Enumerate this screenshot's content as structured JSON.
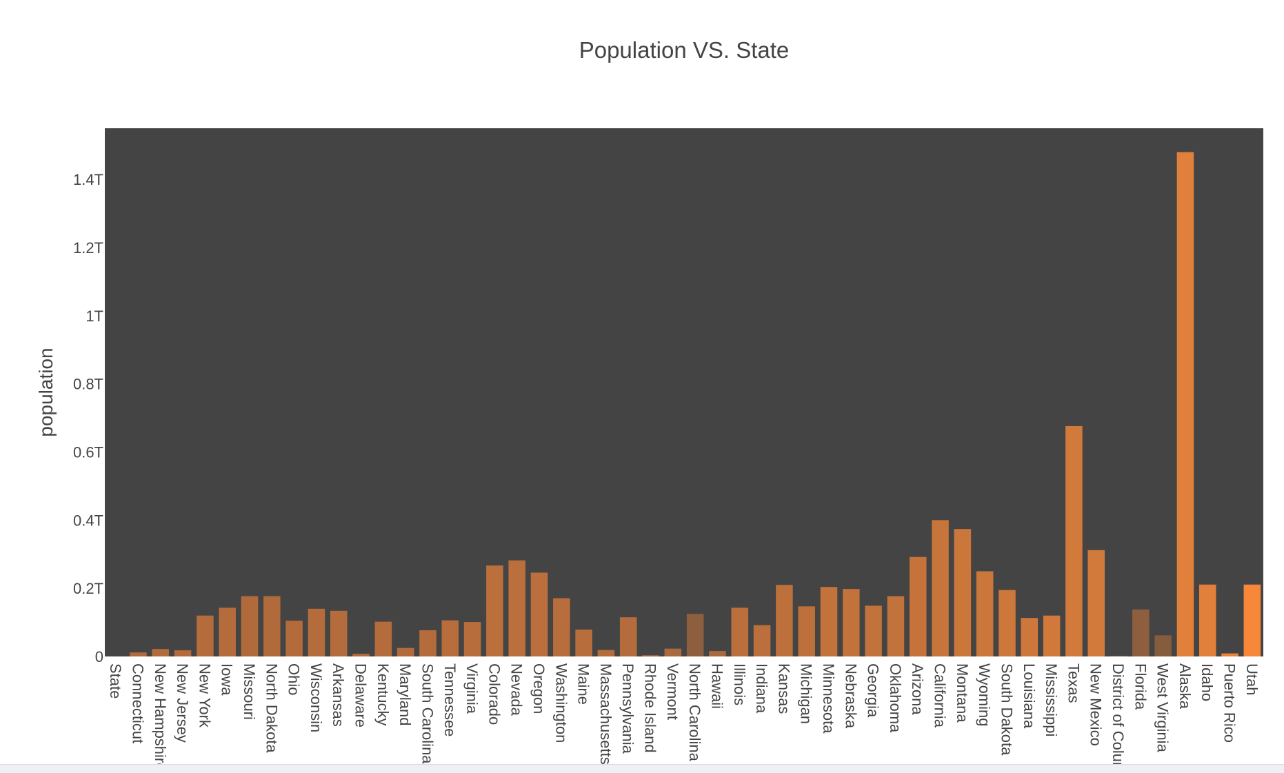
{
  "chart_data": {
    "type": "bar",
    "title": "Population VS. State",
    "xlabel": "",
    "ylabel": "population",
    "ylim": [
      0,
      1.55
    ],
    "ytick_values": [
      0,
      0.2,
      0.4,
      0.6,
      0.8,
      1,
      1.2,
      1.4
    ],
    "ytick_labels": [
      "0",
      "0.2T",
      "0.4T",
      "0.6T",
      "0.8T",
      "1T",
      "1.2T",
      "1.4T"
    ],
    "grid": false,
    "legend": "none",
    "plot_background": "#444444",
    "color_low": "#7c5a3f",
    "color_high": "#f7883a",
    "categories": [
      "State",
      "Connecticut",
      "New Hampshire",
      "New Jersey",
      "New York",
      "Iowa",
      "Missouri",
      "North Dakota",
      "Ohio",
      "Wisconsin",
      "Arkansas",
      "Delaware",
      "Kentucky",
      "Maryland",
      "South Carolina",
      "Tennessee",
      "Virginia",
      "Colorado",
      "Nevada",
      "Oregon",
      "Washington",
      "Maine",
      "Massachusetts",
      "Pennsylvania",
      "Rhode Island",
      "Vermont",
      "North Carolina",
      "Hawaii",
      "Illinois",
      "Indiana",
      "Kansas",
      "Michigan",
      "Minnesota",
      "Nebraska",
      "Georgia",
      "Oklahoma",
      "Arizona",
      "California",
      "Montana",
      "Wyoming",
      "South Dakota",
      "Louisiana",
      "Mississippi",
      "Texas",
      "New Mexico",
      "District of Columbia",
      "Florida",
      "West Virginia",
      "Alaska",
      "Idaho",
      "Puerto Rico",
      "Utah"
    ],
    "values": [
      0,
      0.012,
      0.022,
      0.018,
      0.12,
      0.143,
      0.177,
      0.177,
      0.105,
      0.14,
      0.134,
      0.008,
      0.102,
      0.025,
      0.077,
      0.106,
      0.101,
      0.267,
      0.282,
      0.246,
      0.171,
      0.079,
      0.019,
      0.115,
      0.004,
      0.023,
      0.125,
      0.016,
      0.143,
      0.092,
      0.21,
      0.147,
      0.204,
      0.198,
      0.149,
      0.177,
      0.292,
      0.4,
      0.374,
      0.25,
      0.195,
      0.113,
      0.12,
      0.676,
      0.312,
      0.002,
      0.138,
      0.062,
      1.48,
      0.211,
      0.009,
      0.211
    ],
    "colors": [
      "#7c5a3f",
      "#b06a3c",
      "#b36b3c",
      "#b36b3c",
      "#b56c3c",
      "#b56c3c",
      "#b06a3c",
      "#b06a3c",
      "#b36b3c",
      "#b56c3c",
      "#b56c3c",
      "#b36b3c",
      "#b56c3c",
      "#b36b3c",
      "#b56c3c",
      "#b86e3c",
      "#b86e3c",
      "#bb6f3c",
      "#bb6f3c",
      "#bb6f3c",
      "#b86e3c",
      "#b86e3c",
      "#b56c3c",
      "#b56c3c",
      "#9a6340",
      "#a86a3e",
      "#8d5f3f",
      "#a86a3e",
      "#bb6f3c",
      "#bb6f3c",
      "#be703c",
      "#be703c",
      "#c2723b",
      "#c2723b",
      "#c2723b",
      "#c2723b",
      "#c5733b",
      "#c8753b",
      "#cb763b",
      "#cb763b",
      "#ce773b",
      "#ce773b",
      "#d1783b",
      "#d27a3b",
      "#d27a3b",
      "#7c5a3f",
      "#8d5f3f",
      "#855c3e",
      "#e0803a",
      "#e0803a",
      "#ea843a",
      "#f7883a"
    ]
  }
}
